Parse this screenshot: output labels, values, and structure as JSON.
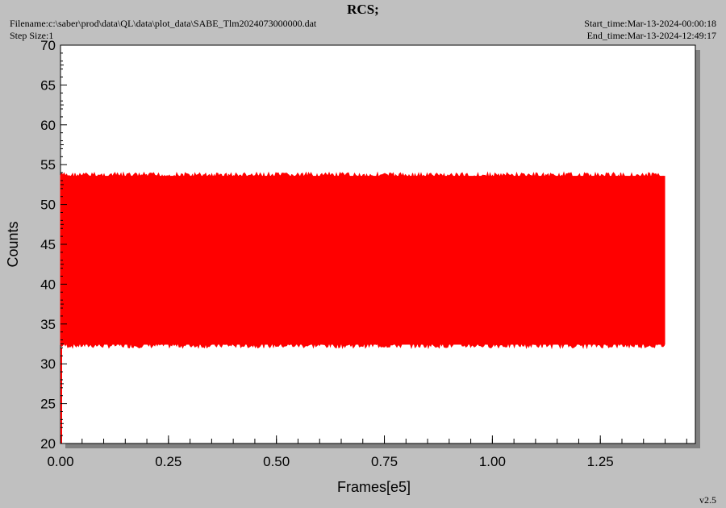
{
  "header": {
    "title": "RCS;",
    "filename": "Filename:c:\\saber\\prod\\data\\QL\\data\\plot_data\\SABE_Tlm2024073000000.dat",
    "step_size": "Step Size:1",
    "start_time": "Start_time:Mar-13-2024-00:00:18",
    "end_time": "End_time:Mar-13-2024-12:49:17"
  },
  "footer": {
    "version": "v2.5"
  },
  "colors": {
    "series": "#ff0000",
    "plot_bg": "#ffffff",
    "frame_bg": "#c0c0c0",
    "shadow": "#808080"
  },
  "chart_data": {
    "type": "line",
    "title": "RCS;",
    "xlabel": "Frames[e5]",
    "ylabel": "Counts",
    "xlim": [
      0,
      1.47
    ],
    "ylim": [
      20,
      70
    ],
    "x_ticks": [
      "0.00",
      "0.25",
      "0.50",
      "0.75",
      "1.00",
      "1.25"
    ],
    "x_tick_values": [
      0,
      0.25,
      0.5,
      0.75,
      1.0,
      1.25
    ],
    "y_ticks": [
      "20",
      "25",
      "30",
      "35",
      "40",
      "45",
      "50",
      "55",
      "60",
      "65",
      "70"
    ],
    "y_tick_values": [
      20,
      25,
      30,
      35,
      40,
      45,
      50,
      55,
      60,
      65,
      70
    ],
    "grid": false,
    "series": [
      {
        "x_range": [
          0,
          1.4
        ],
        "y_min": 32,
        "y_max": 54,
        "initial_drop_to": 20
      }
    ]
  }
}
